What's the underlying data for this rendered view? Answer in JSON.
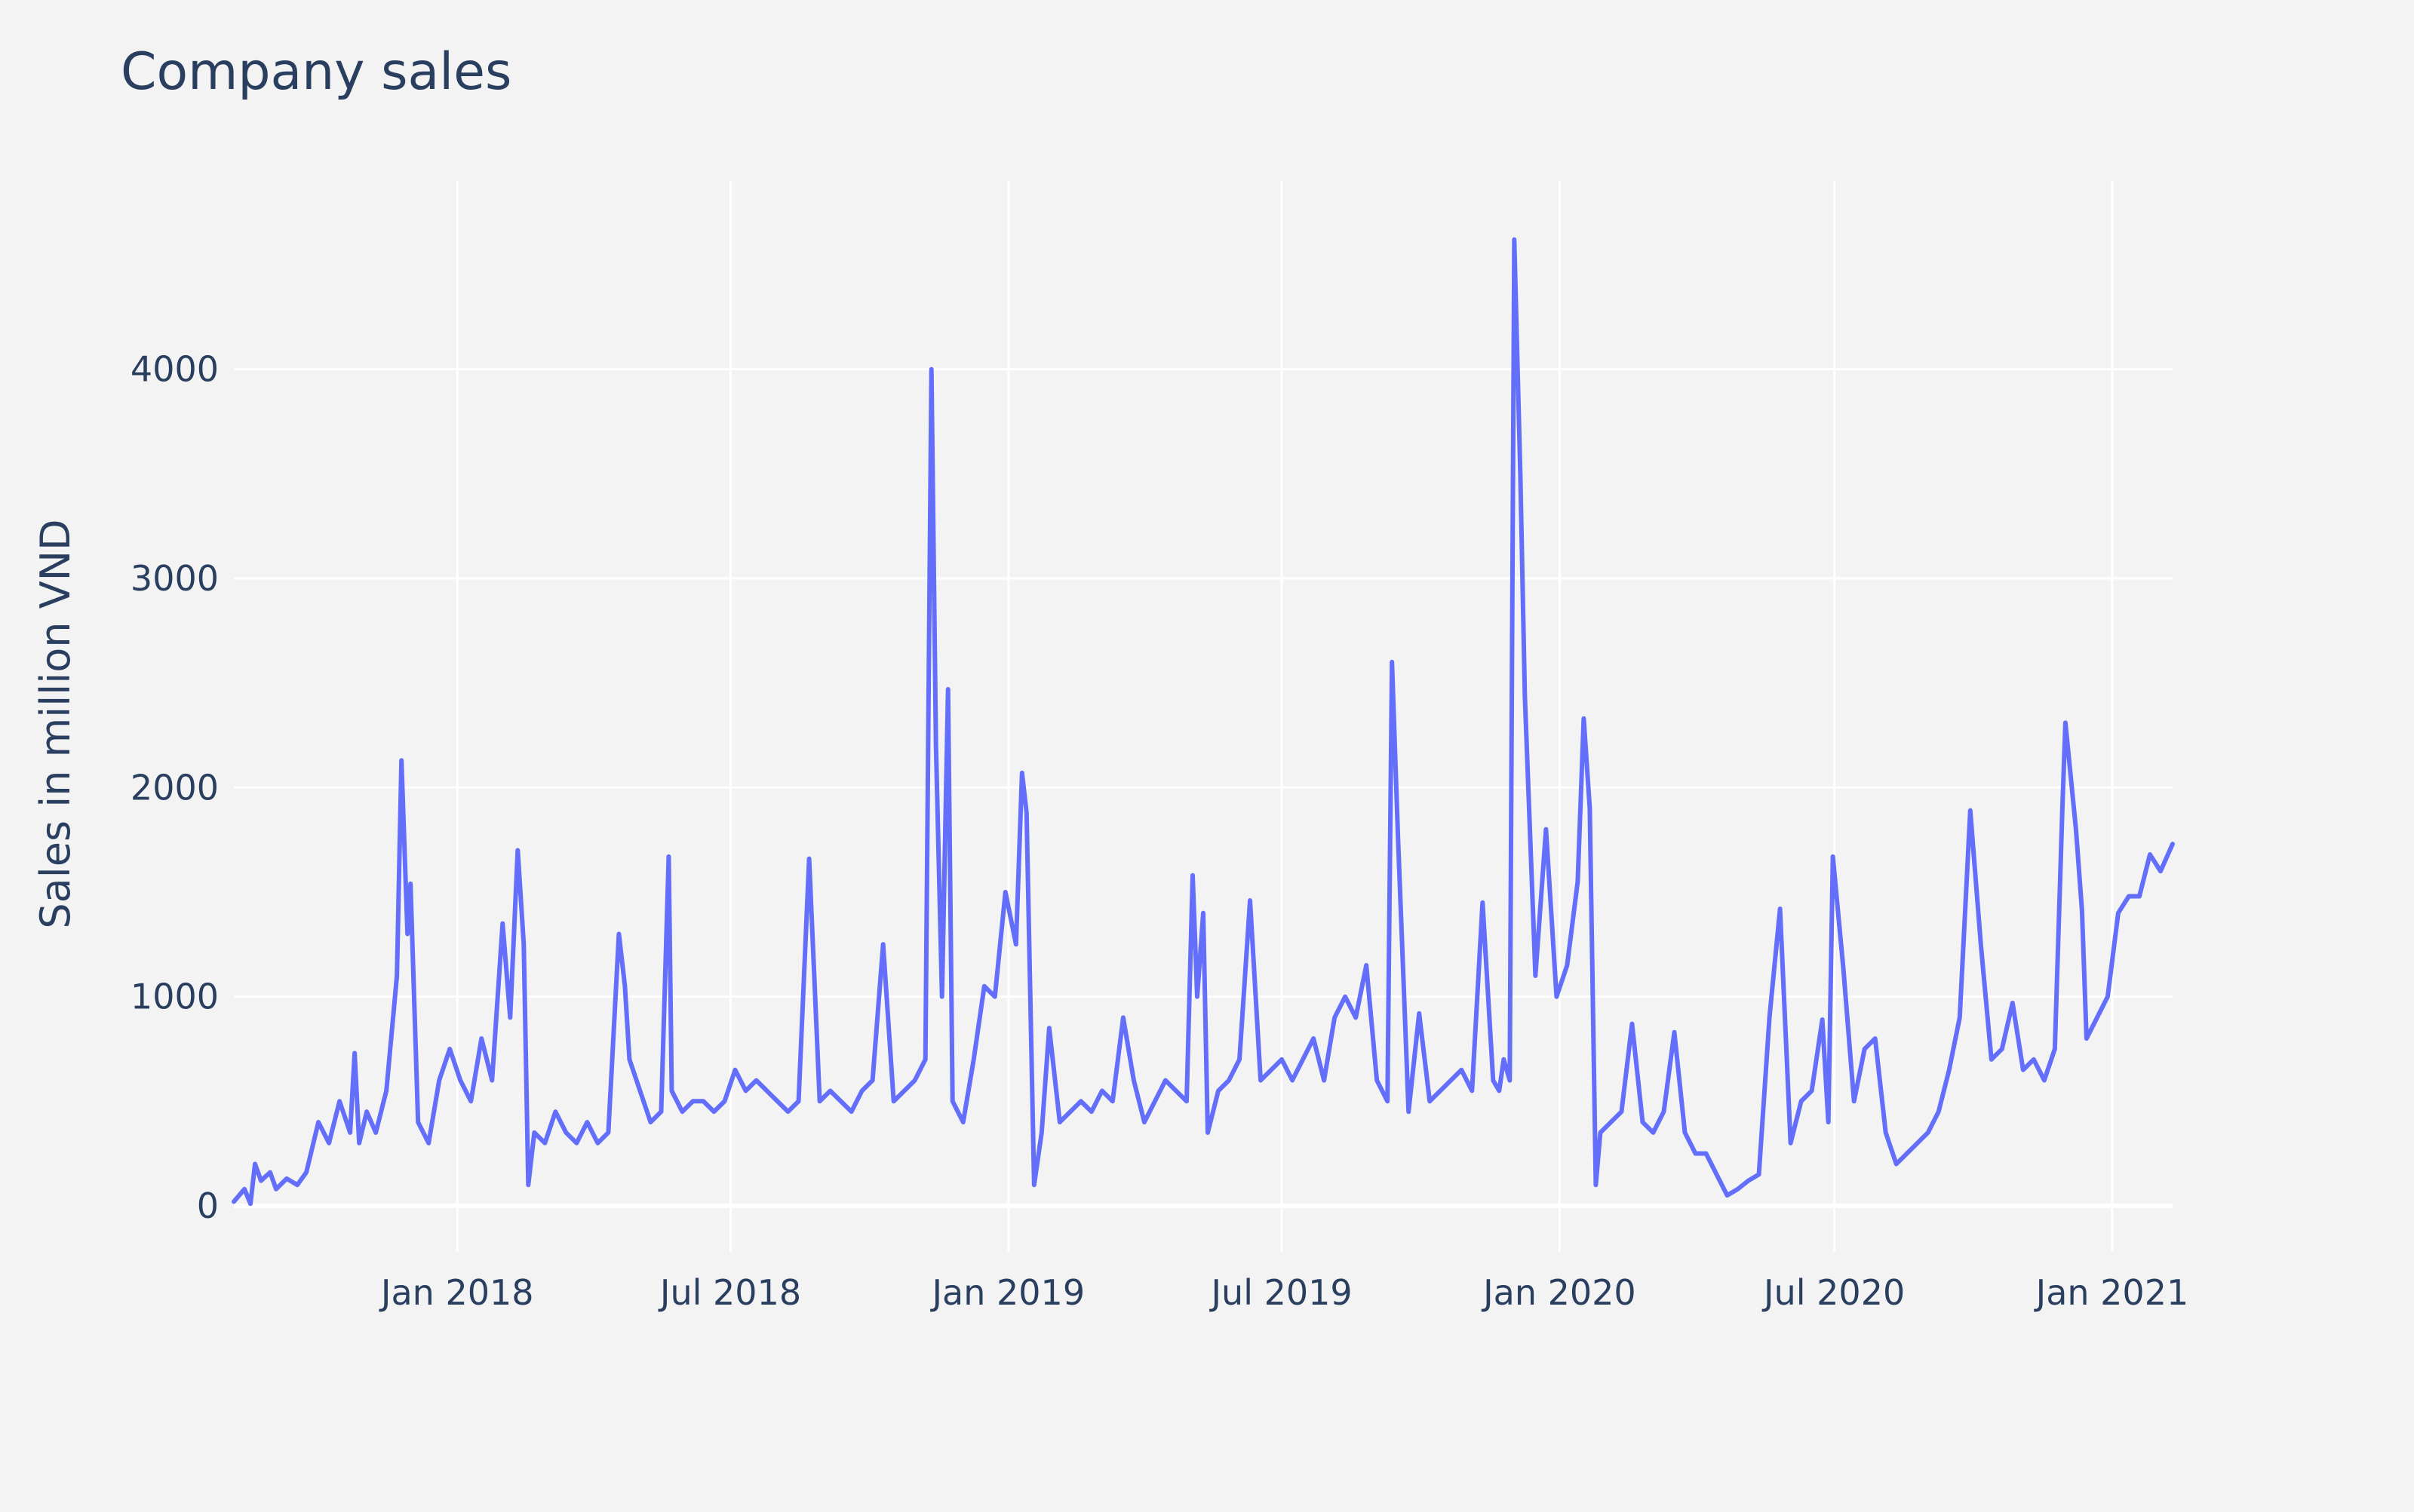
{
  "chart_data": {
    "type": "line",
    "title": "Company sales",
    "xlabel": "",
    "ylabel": "Sales in million VND",
    "xlim": [
      "2017-08-06",
      "2021-02-10"
    ],
    "ylim": [
      -220,
      4900
    ],
    "y_ticks": [
      0,
      1000,
      2000,
      3000,
      4000
    ],
    "y_tick_labels": [
      "0",
      "1000",
      "2000",
      "3000",
      "4000"
    ],
    "x_ticks": [
      "2018-01-01",
      "2018-07-01",
      "2019-01-01",
      "2019-07-01",
      "2020-01-01",
      "2020-07-01",
      "2021-01-01"
    ],
    "x_tick_labels": [
      "Jan 2018",
      "Jul 2018",
      "Jan 2019",
      "Jul 2019",
      "Jan 2020",
      "Jul 2020",
      "Jan 2021"
    ],
    "grid": true,
    "colors": {
      "background": "#f3f3f3",
      "plot_background": "#f3f3f3",
      "grid": "#ffffff",
      "zero_line": "#ffffff",
      "line": "#636efa",
      "text": "#2a3f5f"
    },
    "series": [
      {
        "name": "",
        "x": [
          "2017-08-06",
          "2017-08-13",
          "2017-08-17",
          "2017-08-20",
          "2017-08-24",
          "2017-08-30",
          "2017-09-03",
          "2017-09-10",
          "2017-09-17",
          "2017-09-23",
          "2017-10-01",
          "2017-10-08",
          "2017-10-15",
          "2017-10-22",
          "2017-10-25",
          "2017-10-28",
          "2017-11-02",
          "2017-11-08",
          "2017-11-15",
          "2017-11-22",
          "2017-11-25",
          "2017-11-29",
          "2017-12-01",
          "2017-12-06",
          "2017-12-13",
          "2017-12-20",
          "2017-12-27",
          "2018-01-03",
          "2018-01-10",
          "2018-01-17",
          "2018-01-24",
          "2018-01-31",
          "2018-02-05",
          "2018-02-10",
          "2018-02-14",
          "2018-02-17",
          "2018-02-21",
          "2018-02-28",
          "2018-03-07",
          "2018-03-14",
          "2018-03-21",
          "2018-03-28",
          "2018-04-04",
          "2018-04-11",
          "2018-04-18",
          "2018-04-22",
          "2018-04-25",
          "2018-05-02",
          "2018-05-09",
          "2018-05-16",
          "2018-05-21",
          "2018-05-23",
          "2018-05-30",
          "2018-06-06",
          "2018-06-13",
          "2018-06-20",
          "2018-06-27",
          "2018-07-04",
          "2018-07-11",
          "2018-07-18",
          "2018-07-25",
          "2018-08-01",
          "2018-08-08",
          "2018-08-15",
          "2018-08-22",
          "2018-08-29",
          "2018-09-05",
          "2018-09-12",
          "2018-09-19",
          "2018-09-26",
          "2018-10-03",
          "2018-10-10",
          "2018-10-17",
          "2018-10-24",
          "2018-10-31",
          "2018-11-07",
          "2018-11-11",
          "2018-11-14",
          "2018-11-18",
          "2018-11-22",
          "2018-11-25",
          "2018-12-02",
          "2018-12-09",
          "2018-12-16",
          "2018-12-23",
          "2018-12-30",
          "2019-01-06",
          "2019-01-10",
          "2019-01-13",
          "2019-01-18",
          "2019-01-23",
          "2019-01-28",
          "2019-02-04",
          "2019-02-11",
          "2019-02-18",
          "2019-02-25",
          "2019-03-04",
          "2019-03-11",
          "2019-03-18",
          "2019-03-25",
          "2019-04-01",
          "2019-04-08",
          "2019-04-15",
          "2019-04-22",
          "2019-04-29",
          "2019-05-03",
          "2019-05-06",
          "2019-05-10",
          "2019-05-13",
          "2019-05-20",
          "2019-05-27",
          "2019-06-03",
          "2019-06-10",
          "2019-06-17",
          "2019-06-24",
          "2019-07-01",
          "2019-07-08",
          "2019-07-15",
          "2019-07-22",
          "2019-07-29",
          "2019-08-05",
          "2019-08-12",
          "2019-08-19",
          "2019-08-26",
          "2019-09-02",
          "2019-09-09",
          "2019-09-12",
          "2019-09-16",
          "2019-09-23",
          "2019-09-30",
          "2019-10-07",
          "2019-10-14",
          "2019-10-21",
          "2019-10-28",
          "2019-11-04",
          "2019-11-11",
          "2019-11-18",
          "2019-11-22",
          "2019-11-25",
          "2019-11-29",
          "2019-12-02",
          "2019-12-06",
          "2019-12-09",
          "2019-12-16",
          "2019-12-23",
          "2019-12-30",
          "2020-01-06",
          "2020-01-13",
          "2020-01-17",
          "2020-01-21",
          "2020-01-25",
          "2020-01-28",
          "2020-02-04",
          "2020-02-11",
          "2020-02-18",
          "2020-02-25",
          "2020-03-03",
          "2020-03-10",
          "2020-03-17",
          "2020-03-24",
          "2020-03-31",
          "2020-04-07",
          "2020-04-14",
          "2020-04-21",
          "2020-04-28",
          "2020-05-05",
          "2020-05-12",
          "2020-05-19",
          "2020-05-26",
          "2020-06-02",
          "2020-06-09",
          "2020-06-16",
          "2020-06-23",
          "2020-06-27",
          "2020-06-30",
          "2020-07-07",
          "2020-07-14",
          "2020-07-21",
          "2020-07-28",
          "2020-08-04",
          "2020-08-11",
          "2020-08-18",
          "2020-08-25",
          "2020-09-01",
          "2020-09-08",
          "2020-09-15",
          "2020-09-22",
          "2020-09-29",
          "2020-10-06",
          "2020-10-13",
          "2020-10-20",
          "2020-10-27",
          "2020-11-03",
          "2020-11-10",
          "2020-11-17",
          "2020-11-24",
          "2020-11-29",
          "2020-12-01",
          "2020-12-08",
          "2020-12-12",
          "2020-12-15",
          "2020-12-22",
          "2020-12-29",
          "2021-01-05",
          "2021-01-12",
          "2021-01-19",
          "2021-01-26",
          "2021-02-02",
          "2021-02-10"
        ],
        "y": [
          20,
          80,
          10,
          200,
          120,
          160,
          80,
          130,
          100,
          160,
          400,
          300,
          500,
          350,
          730,
          300,
          450,
          350,
          550,
          1100,
          2130,
          1300,
          1540,
          400,
          300,
          600,
          750,
          600,
          500,
          800,
          600,
          1350,
          900,
          1700,
          1250,
          100,
          350,
          300,
          450,
          350,
          300,
          400,
          300,
          350,
          1300,
          1050,
          700,
          550,
          400,
          450,
          1670,
          550,
          450,
          500,
          500,
          450,
          500,
          650,
          550,
          600,
          550,
          500,
          450,
          500,
          1660,
          500,
          550,
          500,
          450,
          550,
          600,
          1250,
          500,
          550,
          600,
          700,
          4000,
          2200,
          1000,
          2470,
          500,
          400,
          700,
          1050,
          1000,
          1500,
          1250,
          2070,
          1880,
          100,
          350,
          850,
          400,
          450,
          500,
          450,
          550,
          500,
          900,
          600,
          400,
          500,
          600,
          550,
          500,
          1580,
          1000,
          1400,
          350,
          550,
          600,
          700,
          1460,
          600,
          650,
          700,
          600,
          700,
          800,
          600,
          900,
          1000,
          900,
          1150,
          600,
          500,
          2600,
          1760,
          450,
          920,
          500,
          550,
          600,
          650,
          550,
          1450,
          600,
          550,
          700,
          600,
          4620,
          3500,
          2440,
          1100,
          1800,
          1000,
          1150,
          1550,
          2330,
          1900,
          100,
          350,
          400,
          450,
          870,
          400,
          350,
          450,
          830,
          350,
          250,
          250,
          150,
          50,
          80,
          120,
          150,
          900,
          1420,
          300,
          500,
          550,
          890,
          400,
          1670,
          1130,
          500,
          750,
          800,
          350,
          200,
          250,
          300,
          350,
          450,
          650,
          900,
          1890,
          1250,
          700,
          750,
          970,
          650,
          700,
          600,
          750,
          1900,
          2310,
          1800,
          1410,
          800,
          900,
          1000,
          1400,
          1480,
          1480,
          1680,
          1600,
          1730
        ]
      }
    ]
  }
}
